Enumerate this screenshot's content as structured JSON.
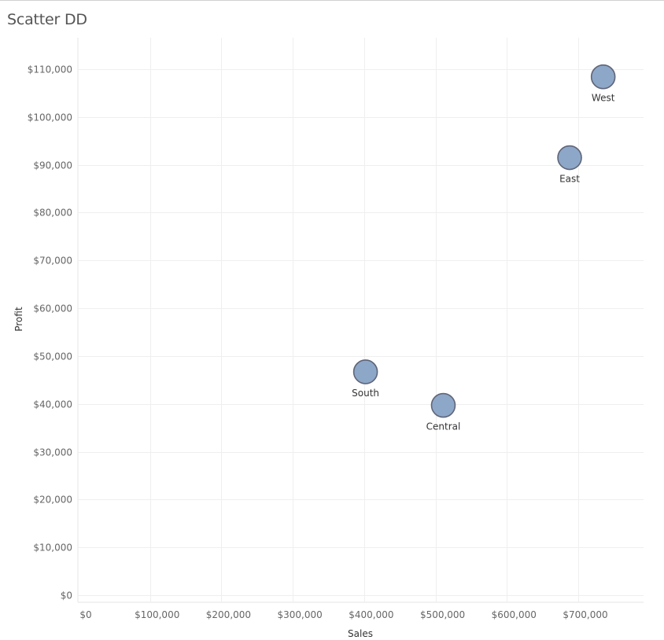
{
  "header": {
    "title": "Scatter DD"
  },
  "chart_data": {
    "type": "scatter",
    "title": "Scatter DD",
    "xlabel": "Sales",
    "ylabel": "Profit",
    "xlim": [
      0,
      780000
    ],
    "ylim": [
      -1500,
      116000
    ],
    "x_ticks": [
      0,
      100000,
      200000,
      300000,
      400000,
      500000,
      600000,
      700000
    ],
    "x_tick_labels": [
      "$0",
      "$100,000",
      "$200,000",
      "$300,000",
      "$400,000",
      "$500,000",
      "$600,000",
      "$700,000"
    ],
    "y_ticks": [
      0,
      10000,
      20000,
      30000,
      40000,
      50000,
      60000,
      70000,
      80000,
      90000,
      100000,
      110000
    ],
    "y_tick_labels": [
      "$0",
      "$10,000",
      "$20,000",
      "$30,000",
      "$40,000",
      "$50,000",
      "$60,000",
      "$70,000",
      "$80,000",
      "$90,000",
      "$100,000",
      "$110,000"
    ],
    "grid": true,
    "marker_color": "#8da7c8",
    "marker_stroke": "#5f6578",
    "points": [
      {
        "label": "West",
        "x": 725000,
        "y": 108400
      },
      {
        "label": "East",
        "x": 678000,
        "y": 91500
      },
      {
        "label": "South",
        "x": 392000,
        "y": 46700
      },
      {
        "label": "Central",
        "x": 501000,
        "y": 39700
      }
    ]
  }
}
